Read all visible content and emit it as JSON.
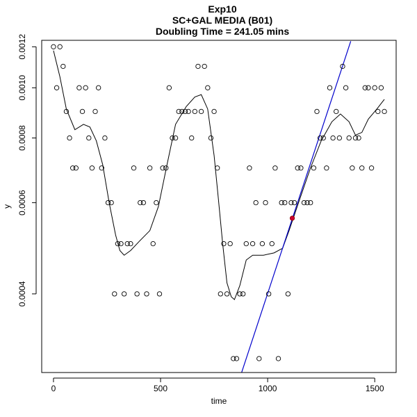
{
  "chart_data": {
    "type": "scatter",
    "title_lines": [
      "Exp10",
      "SC+GAL MEDIA (B01)",
      "Doubling Time = 241.05 mins"
    ],
    "xlabel": "time",
    "ylabel": "y",
    "xlim": [
      -55,
      1600
    ],
    "ylim": [
      0.000282,
      0.001235
    ],
    "y_scale": "log",
    "x_ticks": [
      0,
      500,
      1000,
      1500
    ],
    "x_tick_labels": [
      "0",
      "500",
      "1000",
      "1500"
    ],
    "y_ticks": [
      0.0004,
      0.0006,
      0.0008,
      0.001,
      0.0012
    ],
    "y_tick_labels": [
      "0.0004",
      "0.0006",
      "0.0008",
      "0.0010",
      "0.0012"
    ],
    "grid": false,
    "points": [
      {
        "x": 0,
        "y": 0.0012
      },
      {
        "x": 15,
        "y": 0.001
      },
      {
        "x": 30,
        "y": 0.0012
      },
      {
        "x": 45,
        "y": 0.0011
      },
      {
        "x": 60,
        "y": 0.0009
      },
      {
        "x": 75,
        "y": 0.0008
      },
      {
        "x": 90,
        "y": 0.0007
      },
      {
        "x": 105,
        "y": 0.0007
      },
      {
        "x": 120,
        "y": 0.001
      },
      {
        "x": 135,
        "y": 0.0009
      },
      {
        "x": 150,
        "y": 0.001
      },
      {
        "x": 165,
        "y": 0.0008
      },
      {
        "x": 180,
        "y": 0.0007
      },
      {
        "x": 195,
        "y": 0.0009
      },
      {
        "x": 210,
        "y": 0.001
      },
      {
        "x": 225,
        "y": 0.0007
      },
      {
        "x": 240,
        "y": 0.0008
      },
      {
        "x": 255,
        "y": 0.0006
      },
      {
        "x": 270,
        "y": 0.0006
      },
      {
        "x": 285,
        "y": 0.0004
      },
      {
        "x": 300,
        "y": 0.0005
      },
      {
        "x": 315,
        "y": 0.0005
      },
      {
        "x": 330,
        "y": 0.0004
      },
      {
        "x": 345,
        "y": 0.0005
      },
      {
        "x": 360,
        "y": 0.0005
      },
      {
        "x": 375,
        "y": 0.0007
      },
      {
        "x": 390,
        "y": 0.0004
      },
      {
        "x": 405,
        "y": 0.0006
      },
      {
        "x": 420,
        "y": 0.0006
      },
      {
        "x": 435,
        "y": 0.0004
      },
      {
        "x": 450,
        "y": 0.0007
      },
      {
        "x": 465,
        "y": 0.0005
      },
      {
        "x": 480,
        "y": 0.0006
      },
      {
        "x": 495,
        "y": 0.0004
      },
      {
        "x": 510,
        "y": 0.0007
      },
      {
        "x": 525,
        "y": 0.0007
      },
      {
        "x": 540,
        "y": 0.001
      },
      {
        "x": 555,
        "y": 0.0008
      },
      {
        "x": 570,
        "y": 0.0008
      },
      {
        "x": 585,
        "y": 0.0009
      },
      {
        "x": 600,
        "y": 0.0009
      },
      {
        "x": 615,
        "y": 0.0009
      },
      {
        "x": 630,
        "y": 0.0009
      },
      {
        "x": 645,
        "y": 0.0008
      },
      {
        "x": 660,
        "y": 0.0009
      },
      {
        "x": 675,
        "y": 0.0011
      },
      {
        "x": 690,
        "y": 0.0009
      },
      {
        "x": 705,
        "y": 0.0011
      },
      {
        "x": 720,
        "y": 0.001
      },
      {
        "x": 735,
        "y": 0.0008
      },
      {
        "x": 750,
        "y": 0.0009
      },
      {
        "x": 765,
        "y": 0.0007
      },
      {
        "x": 780,
        "y": 0.0004
      },
      {
        "x": 795,
        "y": 0.0005
      },
      {
        "x": 810,
        "y": 0.0004
      },
      {
        "x": 825,
        "y": 0.0005
      },
      {
        "x": 840,
        "y": 0.0003
      },
      {
        "x": 855,
        "y": 0.0003
      },
      {
        "x": 870,
        "y": 0.0004
      },
      {
        "x": 885,
        "y": 0.0004
      },
      {
        "x": 900,
        "y": 0.0005
      },
      {
        "x": 915,
        "y": 0.0007
      },
      {
        "x": 930,
        "y": 0.0005
      },
      {
        "x": 945,
        "y": 0.0006
      },
      {
        "x": 960,
        "y": 0.0003
      },
      {
        "x": 975,
        "y": 0.0005
      },
      {
        "x": 990,
        "y": 0.0006
      },
      {
        "x": 1005,
        "y": 0.0004
      },
      {
        "x": 1020,
        "y": 0.0005
      },
      {
        "x": 1035,
        "y": 0.0007
      },
      {
        "x": 1050,
        "y": 0.0003
      },
      {
        "x": 1065,
        "y": 0.0006
      },
      {
        "x": 1080,
        "y": 0.0006
      },
      {
        "x": 1095,
        "y": 0.0004
      },
      {
        "x": 1110,
        "y": 0.0006
      },
      {
        "x": 1125,
        "y": 0.0006
      },
      {
        "x": 1140,
        "y": 0.0007
      },
      {
        "x": 1155,
        "y": 0.0007
      },
      {
        "x": 1170,
        "y": 0.0006
      },
      {
        "x": 1185,
        "y": 0.0006
      },
      {
        "x": 1200,
        "y": 0.0006
      },
      {
        "x": 1215,
        "y": 0.0007
      },
      {
        "x": 1230,
        "y": 0.0009
      },
      {
        "x": 1245,
        "y": 0.0008
      },
      {
        "x": 1260,
        "y": 0.0008
      },
      {
        "x": 1275,
        "y": 0.0007
      },
      {
        "x": 1290,
        "y": 0.001
      },
      {
        "x": 1305,
        "y": 0.0008
      },
      {
        "x": 1320,
        "y": 0.0009
      },
      {
        "x": 1335,
        "y": 0.0008
      },
      {
        "x": 1350,
        "y": 0.0011
      },
      {
        "x": 1365,
        "y": 0.001
      },
      {
        "x": 1380,
        "y": 0.0008
      },
      {
        "x": 1395,
        "y": 0.0007
      },
      {
        "x": 1410,
        "y": 0.0008
      },
      {
        "x": 1425,
        "y": 0.0008
      },
      {
        "x": 1440,
        "y": 0.0007
      },
      {
        "x": 1455,
        "y": 0.001
      },
      {
        "x": 1470,
        "y": 0.001
      },
      {
        "x": 1485,
        "y": 0.0007
      },
      {
        "x": 1500,
        "y": 0.001
      },
      {
        "x": 1515,
        "y": 0.0009
      },
      {
        "x": 1530,
        "y": 0.001
      },
      {
        "x": 1545,
        "y": 0.0009
      }
    ],
    "smooth_curve": [
      {
        "x": 0,
        "y": 0.00118
      },
      {
        "x": 30,
        "y": 0.00105
      },
      {
        "x": 60,
        "y": 0.00091
      },
      {
        "x": 100,
        "y": 0.00083
      },
      {
        "x": 140,
        "y": 0.00085
      },
      {
        "x": 170,
        "y": 0.00084
      },
      {
        "x": 200,
        "y": 0.00079
      },
      {
        "x": 230,
        "y": 0.00071
      },
      {
        "x": 260,
        "y": 0.0006
      },
      {
        "x": 290,
        "y": 0.00052
      },
      {
        "x": 310,
        "y": 0.000485
      },
      {
        "x": 330,
        "y": 0.000475
      },
      {
        "x": 360,
        "y": 0.000485
      },
      {
        "x": 400,
        "y": 0.000505
      },
      {
        "x": 450,
        "y": 0.00053
      },
      {
        "x": 490,
        "y": 0.00059
      },
      {
        "x": 530,
        "y": 0.00071
      },
      {
        "x": 570,
        "y": 0.00085
      },
      {
        "x": 620,
        "y": 0.00092
      },
      {
        "x": 660,
        "y": 0.00096
      },
      {
        "x": 690,
        "y": 0.00097
      },
      {
        "x": 720,
        "y": 0.00091
      },
      {
        "x": 750,
        "y": 0.00074
      },
      {
        "x": 770,
        "y": 0.00061
      },
      {
        "x": 790,
        "y": 0.0005
      },
      {
        "x": 810,
        "y": 0.00042
      },
      {
        "x": 830,
        "y": 0.000395
      },
      {
        "x": 845,
        "y": 0.00039
      },
      {
        "x": 870,
        "y": 0.000415
      },
      {
        "x": 900,
        "y": 0.000465
      },
      {
        "x": 930,
        "y": 0.000475
      },
      {
        "x": 980,
        "y": 0.000475
      },
      {
        "x": 1030,
        "y": 0.00048
      },
      {
        "x": 1070,
        "y": 0.00049
      },
      {
        "x": 1100,
        "y": 0.00053
      },
      {
        "x": 1150,
        "y": 0.00061
      },
      {
        "x": 1200,
        "y": 0.0007
      },
      {
        "x": 1250,
        "y": 0.00079
      },
      {
        "x": 1300,
        "y": 0.00086
      },
      {
        "x": 1340,
        "y": 0.00089
      },
      {
        "x": 1380,
        "y": 0.00086
      },
      {
        "x": 1410,
        "y": 0.00081
      },
      {
        "x": 1440,
        "y": 0.00082
      },
      {
        "x": 1470,
        "y": 0.00087
      },
      {
        "x": 1510,
        "y": 0.00091
      },
      {
        "x": 1545,
        "y": 0.00095
      }
    ],
    "fit_line": {
      "color": "#0000cc",
      "x_start": 876,
      "y_start": 0.00028,
      "x_end": 1388,
      "y_end": 0.00123
    },
    "highlight_point": {
      "x": 1115,
      "y": 0.00056,
      "color": "#cc0033"
    }
  }
}
